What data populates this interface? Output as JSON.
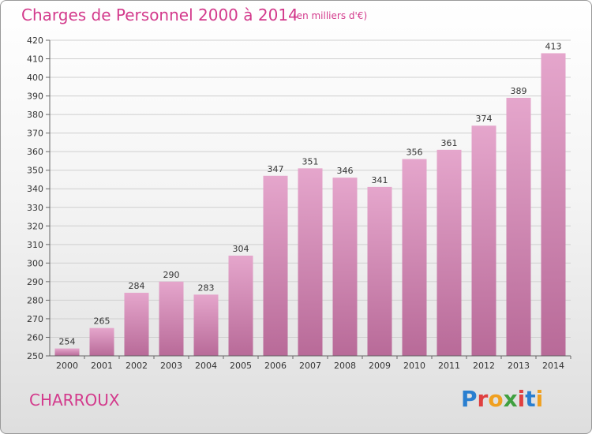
{
  "header": {
    "title": "Charges de Personnel 2000 à 2014",
    "unit": "(en milliers d'€)"
  },
  "footer": {
    "commune": "CHARROUX",
    "logo": "Proxiti"
  },
  "colors": {
    "accent": "#d33a8c",
    "bar_top": "#e5a6cc",
    "bar_bottom": "#b86a98"
  },
  "chart_data": {
    "type": "bar",
    "title": "Charges de Personnel 2000 à 2014",
    "xlabel": "",
    "ylabel": "",
    "categories": [
      "2000",
      "2001",
      "2002",
      "2003",
      "2004",
      "2005",
      "2006",
      "2007",
      "2008",
      "2009",
      "2010",
      "2011",
      "2012",
      "2013",
      "2014"
    ],
    "values": [
      254,
      265,
      284,
      290,
      283,
      304,
      347,
      351,
      346,
      341,
      356,
      361,
      374,
      389,
      413
    ],
    "ylim": [
      250,
      420
    ],
    "yticks": [
      250,
      260,
      270,
      280,
      290,
      300,
      310,
      320,
      330,
      340,
      350,
      360,
      370,
      380,
      390,
      400,
      410,
      420
    ],
    "grid": true,
    "data_labels": true
  }
}
